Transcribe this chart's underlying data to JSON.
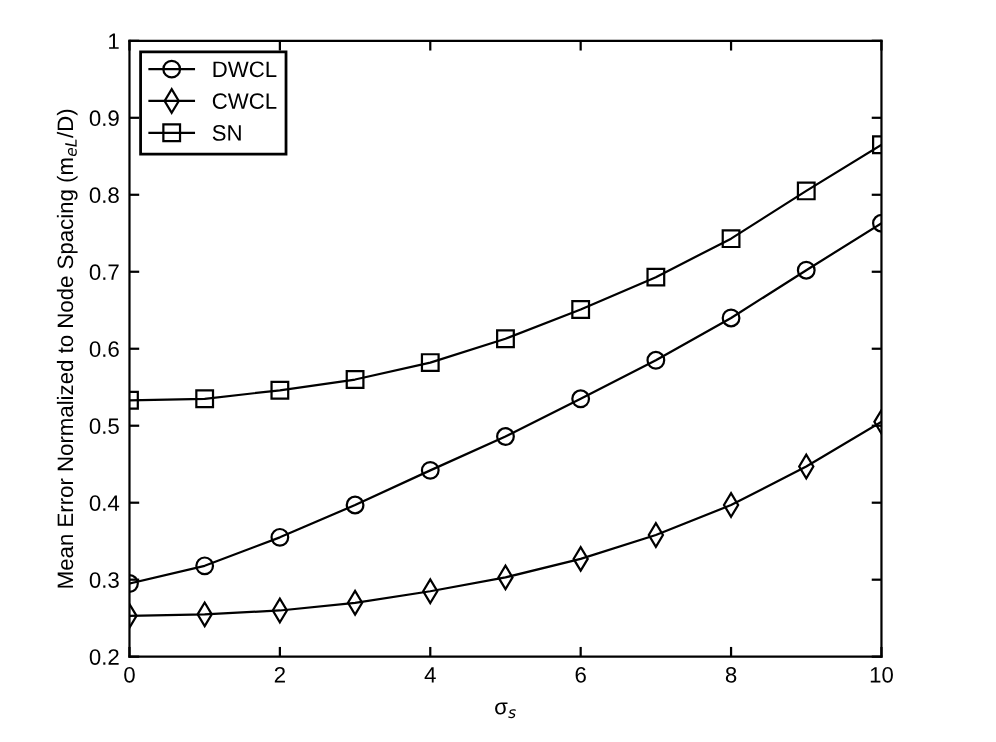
{
  "chart_data": {
    "type": "line",
    "xlabel": "σ$_{s}$",
    "ylabel": "Mean Error Normalized to Node Spacing (m$_{eL}$/D)",
    "x": [
      0,
      1,
      2,
      3,
      4,
      5,
      6,
      7,
      8,
      9,
      10
    ],
    "series": [
      {
        "name": "DWCL",
        "color": "#000000",
        "marker": "circle",
        "values": [
          0.295,
          0.318,
          0.355,
          0.397,
          0.442,
          0.486,
          0.535,
          0.585,
          0.64,
          0.702,
          0.763
        ]
      },
      {
        "name": "CWCL",
        "color": "#000000",
        "marker": "diamond",
        "values": [
          0.253,
          0.255,
          0.26,
          0.27,
          0.285,
          0.303,
          0.327,
          0.358,
          0.397,
          0.447,
          0.505
        ]
      },
      {
        "name": "SN",
        "color": "#000000",
        "marker": "square",
        "values": [
          0.533,
          0.535,
          0.546,
          0.56,
          0.582,
          0.613,
          0.651,
          0.693,
          0.743,
          0.805,
          0.865
        ]
      }
    ],
    "xlim": [
      0,
      10
    ],
    "xticks": [
      0,
      2,
      4,
      6,
      8,
      10
    ],
    "ylim": [
      0.2,
      1
    ],
    "yticks": [
      0.2,
      0.3,
      0.4,
      0.5,
      0.6,
      0.7,
      0.8,
      0.9,
      1
    ],
    "legend": "top left",
    "grid": false,
    "line_style": "solid"
  }
}
